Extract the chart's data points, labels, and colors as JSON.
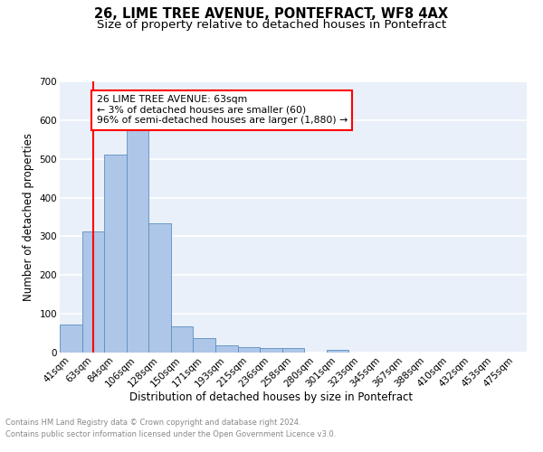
{
  "title": "26, LIME TREE AVENUE, PONTEFRACT, WF8 4AX",
  "subtitle": "Size of property relative to detached houses in Pontefract",
  "xlabel": "Distribution of detached houses by size in Pontefract",
  "ylabel": "Number of detached properties",
  "bin_labels": [
    "41sqm",
    "63sqm",
    "84sqm",
    "106sqm",
    "128sqm",
    "150sqm",
    "171sqm",
    "193sqm",
    "215sqm",
    "236sqm",
    "258sqm",
    "280sqm",
    "301sqm",
    "323sqm",
    "345sqm",
    "367sqm",
    "388sqm",
    "410sqm",
    "432sqm",
    "453sqm",
    "475sqm"
  ],
  "bar_heights": [
    72,
    312,
    510,
    580,
    333,
    67,
    37,
    18,
    15,
    11,
    11,
    0,
    7,
    0,
    0,
    0,
    0,
    0,
    0,
    0,
    0
  ],
  "bar_color": "#aec6e8",
  "bar_edge_color": "#5a8fc0",
  "vline_x_index": 1,
  "vline_color": "red",
  "annotation_text": "26 LIME TREE AVENUE: 63sqm\n← 3% of detached houses are smaller (60)\n96% of semi-detached houses are larger (1,880) →",
  "annotation_box_color": "white",
  "annotation_box_edge_color": "red",
  "footer_line1": "Contains HM Land Registry data © Crown copyright and database right 2024.",
  "footer_line2": "Contains public sector information licensed under the Open Government Licence v3.0.",
  "ylim": [
    0,
    700
  ],
  "yticks": [
    0,
    100,
    200,
    300,
    400,
    500,
    600,
    700
  ],
  "bg_color": "#eaf0f9",
  "grid_color": "white",
  "title_fontsize": 10.5,
  "subtitle_fontsize": 9.5,
  "axis_label_fontsize": 8.5,
  "tick_fontsize": 7.5,
  "footer_fontsize": 6.0,
  "annotation_fontsize": 7.8
}
